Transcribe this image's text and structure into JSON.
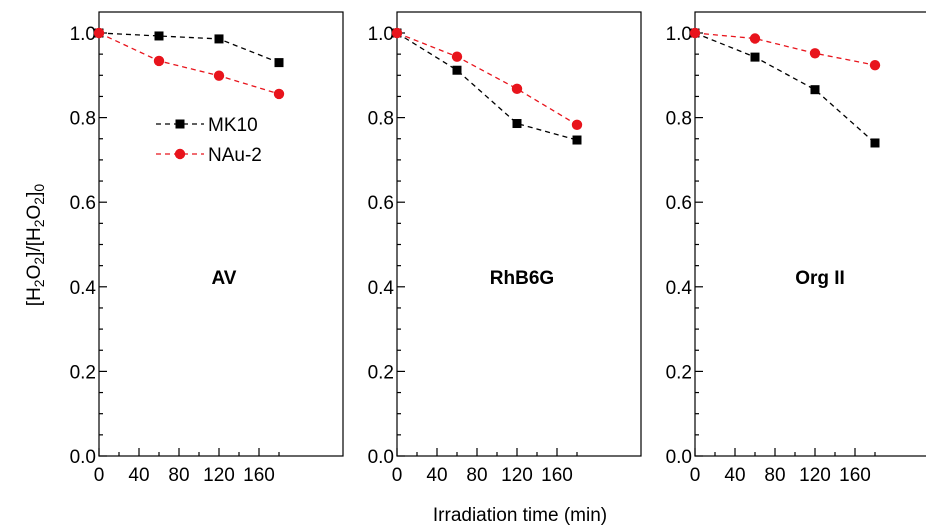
{
  "chart_data": {
    "type": "line",
    "xlabel": "Irradiation time (min)",
    "ylabel": {
      "open": "[H",
      "s1": "2",
      "o": "O",
      "s2": "2",
      "mid": "]/[H",
      "s3": "2",
      "o2": "O",
      "s4": "2",
      "close": "]",
      "s5": "0"
    },
    "xlim": [
      0,
      180
    ],
    "ylim": [
      0.0,
      1.05
    ],
    "xticks": [
      "0",
      "40",
      "80",
      "120",
      "160"
    ],
    "xtick_values": [
      0,
      40,
      80,
      120,
      160
    ],
    "yticks": [
      "0.0",
      "0.2",
      "0.4",
      "0.6",
      "0.8",
      "1.0"
    ],
    "ytick_values": [
      0.0,
      0.2,
      0.4,
      0.6,
      0.8,
      1.0
    ],
    "grid": false,
    "legend": {
      "location": "upper-left of first panel"
    },
    "colors": {
      "MK10": "#000000",
      "NAu-2": "#e8141c"
    },
    "panels": [
      {
        "label": "AV",
        "x": [
          0,
          60,
          120,
          180
        ],
        "series": [
          {
            "name": "MK10",
            "values": [
              1.0,
              0.993,
              0.986,
              0.93
            ]
          },
          {
            "name": "NAu-2",
            "values": [
              1.0,
              0.934,
              0.899,
              0.856
            ]
          }
        ]
      },
      {
        "label": "RhB6G",
        "x": [
          0,
          60,
          120,
          180
        ],
        "series": [
          {
            "name": "MK10",
            "values": [
              1.0,
              0.912,
              0.786,
              0.747
            ]
          },
          {
            "name": "NAu-2",
            "values": [
              1.0,
              0.944,
              0.868,
              0.783
            ]
          }
        ]
      },
      {
        "label": "Org II",
        "x": [
          0,
          60,
          120,
          180
        ],
        "series": [
          {
            "name": "MK10",
            "values": [
              1.0,
              0.943,
              0.866,
              0.74
            ]
          },
          {
            "name": "NAu-2",
            "values": [
              1.0,
              0.987,
              0.952,
              0.924
            ]
          }
        ]
      }
    ]
  }
}
